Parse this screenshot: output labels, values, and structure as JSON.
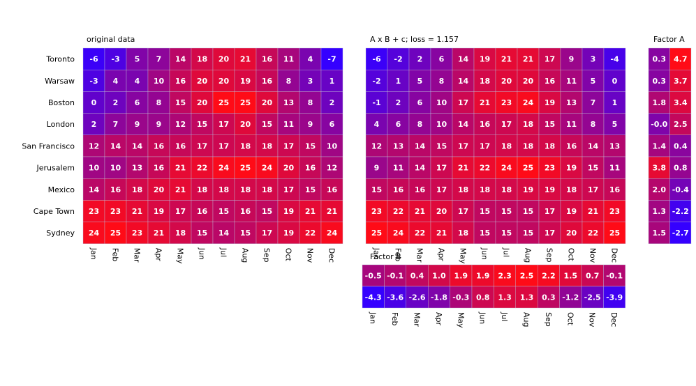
{
  "colors": {
    "low": "#3500ff",
    "high": "#ff0b17",
    "grid": "#bfbfd8"
  },
  "chart_data": [
    {
      "type": "heatmap",
      "title": "original data",
      "rows": [
        "Toronto",
        "Warsaw",
        "Boston",
        "London",
        "San Francisco",
        "Jerusalem",
        "Mexico",
        "Cape Town",
        "Sydney"
      ],
      "columns": [
        "Jan",
        "Feb",
        "Mar",
        "Apr",
        "May",
        "Jun",
        "Jul",
        "Aug",
        "Sep",
        "Oct",
        "Nov",
        "Dec"
      ],
      "values": [
        [
          "-6",
          "-3",
          "5",
          "7",
          "14",
          "18",
          "20",
          "21",
          "16",
          "11",
          "4",
          "-7"
        ],
        [
          "-3",
          "4",
          "4",
          "10",
          "16",
          "20",
          "20",
          "19",
          "16",
          "8",
          "3",
          "1"
        ],
        [
          "0",
          "2",
          "6",
          "8",
          "15",
          "20",
          "25",
          "25",
          "20",
          "13",
          "8",
          "2"
        ],
        [
          "2",
          "7",
          "9",
          "9",
          "12",
          "15",
          "17",
          "20",
          "15",
          "11",
          "9",
          "6"
        ],
        [
          "12",
          "14",
          "14",
          "16",
          "16",
          "17",
          "17",
          "18",
          "18",
          "17",
          "15",
          "10"
        ],
        [
          "10",
          "10",
          "13",
          "16",
          "21",
          "22",
          "24",
          "25",
          "24",
          "20",
          "16",
          "12"
        ],
        [
          "14",
          "16",
          "18",
          "20",
          "21",
          "18",
          "18",
          "18",
          "18",
          "17",
          "15",
          "16"
        ],
        [
          "23",
          "23",
          "21",
          "19",
          "17",
          "16",
          "15",
          "16",
          "15",
          "19",
          "21",
          "21"
        ],
        [
          "24",
          "25",
          "23",
          "21",
          "18",
          "15",
          "14",
          "15",
          "17",
          "19",
          "22",
          "24"
        ]
      ],
      "color_range": [
        -7,
        25
      ]
    },
    {
      "type": "heatmap",
      "title": "A x B + c; loss = 1.157",
      "columns": [
        "Jan",
        "Feb",
        "Mar",
        "Apr",
        "May",
        "Jun",
        "Jul",
        "Aug",
        "Sep",
        "Oct",
        "Nov",
        "Dec"
      ],
      "values": [
        [
          "-6",
          "-2",
          "2",
          "6",
          "14",
          "19",
          "21",
          "21",
          "17",
          "9",
          "3",
          "-4"
        ],
        [
          "-2",
          "1",
          "5",
          "8",
          "14",
          "18",
          "20",
          "20",
          "16",
          "11",
          "5",
          "0"
        ],
        [
          "-1",
          "2",
          "6",
          "10",
          "17",
          "21",
          "23",
          "24",
          "19",
          "13",
          "7",
          "1"
        ],
        [
          "4",
          "6",
          "8",
          "10",
          "14",
          "16",
          "17",
          "18",
          "15",
          "11",
          "8",
          "5"
        ],
        [
          "12",
          "13",
          "14",
          "15",
          "17",
          "17",
          "18",
          "18",
          "18",
          "16",
          "14",
          "13"
        ],
        [
          "9",
          "11",
          "14",
          "17",
          "21",
          "22",
          "24",
          "25",
          "23",
          "19",
          "15",
          "11"
        ],
        [
          "15",
          "16",
          "16",
          "17",
          "18",
          "18",
          "18",
          "19",
          "19",
          "18",
          "17",
          "16"
        ],
        [
          "23",
          "22",
          "21",
          "20",
          "17",
          "15",
          "15",
          "15",
          "17",
          "19",
          "21",
          "23"
        ],
        [
          "25",
          "24",
          "22",
          "21",
          "18",
          "15",
          "15",
          "15",
          "17",
          "20",
          "22",
          "25"
        ]
      ],
      "color_range": [
        -7,
        25
      ]
    },
    {
      "type": "heatmap",
      "title": "Factor A",
      "values": [
        [
          "0.3",
          "4.7"
        ],
        [
          "0.3",
          "3.7"
        ],
        [
          "1.8",
          "3.4"
        ],
        [
          "-0.0",
          "2.5"
        ],
        [
          "1.4",
          "0.4"
        ],
        [
          "3.8",
          "0.8"
        ],
        [
          "2.0",
          "-0.4"
        ],
        [
          "1.3",
          "-2.2"
        ],
        [
          "1.5",
          "-2.7"
        ]
      ],
      "color_range": [
        -2.7,
        4.7
      ]
    },
    {
      "type": "heatmap",
      "title": "Factor B",
      "columns": [
        "Jan",
        "Feb",
        "Mar",
        "Apr",
        "May",
        "Jun",
        "Jul",
        "Aug",
        "Sep",
        "Oct",
        "Nov",
        "Dec"
      ],
      "values": [
        [
          "-0.5",
          "-0.1",
          "0.4",
          "1.0",
          "1.9",
          "1.9",
          "2.3",
          "2.5",
          "2.2",
          "1.5",
          "0.7",
          "-0.1"
        ],
        [
          "-4.3",
          "-3.6",
          "-2.6",
          "-1.8",
          "-0.3",
          "0.8",
          "1.3",
          "1.3",
          "0.3",
          "-1.2",
          "-2.5",
          "-3.9"
        ]
      ],
      "color_range": [
        -4.3,
        2.5
      ]
    }
  ]
}
